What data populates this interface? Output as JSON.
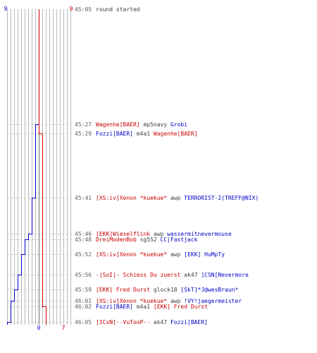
{
  "colors": {
    "ct": "#0000c8",
    "t": "#c80000",
    "neutral": "#404040",
    "time": "#606060",
    "grid": "#b8b8b8",
    "dash": "#c8c8c8"
  },
  "score_ct_start": "9",
  "score_t_start": "9",
  "score_ct_end": "0",
  "score_t_end": "7",
  "events": [
    {
      "time": "45:05",
      "ct": 9,
      "t": 9,
      "parts": [
        {
          "text": "round started",
          "team": "neutral"
        }
      ]
    },
    {
      "time": "45:27",
      "ct": 8,
      "t": 9,
      "parts": [
        {
          "text": "Wagenhe[BAER]",
          "team": "t"
        },
        {
          "text": " mp5navy ",
          "team": "neutral"
        },
        {
          "text": "Grobi",
          "team": "ct"
        }
      ]
    },
    {
      "time": "45:29",
      "ct": 8,
      "t": 8,
      "parts": [
        {
          "text": "Fozzi[BAER]",
          "team": "ct"
        },
        {
          "text": " m4a1 ",
          "team": "neutral"
        },
        {
          "text": "Wagenhe[BAER]",
          "team": "t"
        }
      ]
    },
    {
      "time": "45:41",
      "ct": 7,
      "t": 8,
      "parts": [
        {
          "text": "[XS:iv]Xenon *kuekue*",
          "team": "t"
        },
        {
          "text": " awp ",
          "team": "neutral"
        },
        {
          "text": "TERRORIST-2(TREFF@NIX)",
          "team": "ct"
        }
      ]
    },
    {
      "time": "45:46",
      "ct": 6,
      "t": 8,
      "parts": [
        {
          "text": "[EKK]Wieselflink",
          "team": "t"
        },
        {
          "text": " awp ",
          "team": "neutral"
        },
        {
          "text": "wassermitnevermouse",
          "team": "ct"
        }
      ]
    },
    {
      "time": "45:48",
      "ct": 5,
      "t": 8,
      "parts": [
        {
          "text": "DreiModenBob",
          "team": "t"
        },
        {
          "text": " sg552 ",
          "team": "neutral"
        },
        {
          "text": "CC|Fastjack",
          "team": "ct"
        }
      ]
    },
    {
      "time": "45:52",
      "ct": 4,
      "t": 8,
      "parts": [
        {
          "text": "[XS:iv]Xenon *kuekue*",
          "team": "t"
        },
        {
          "text": " awp ",
          "team": "neutral"
        },
        {
          "text": "[EKK] HuMpTy",
          "team": "ct"
        }
      ]
    },
    {
      "time": "45:56",
      "ct": 3,
      "t": 8,
      "parts": [
        {
          "text": "-|SoI|- Schiess Du zuerst",
          "team": "t"
        },
        {
          "text": " ak47 ",
          "team": "neutral"
        },
        {
          "text": "]CSN[Nevermore",
          "team": "ct"
        }
      ]
    },
    {
      "time": "45:59",
      "ct": 2,
      "t": 8,
      "parts": [
        {
          "text": "[EKK] Fred Durst",
          "team": "t"
        },
        {
          "text": " glock18 ",
          "team": "neutral"
        },
        {
          "text": "[SkT]*J@wesBraun*",
          "team": "ct"
        }
      ]
    },
    {
      "time": "46:01",
      "ct": 1,
      "t": 8,
      "parts": [
        {
          "text": "[XS:iv]Xenon *kuekue*",
          "team": "t"
        },
        {
          "text": " awp ",
          "team": "neutral"
        },
        {
          "text": "!VY!jaegermeister",
          "team": "ct"
        }
      ]
    },
    {
      "time": "46:02",
      "ct": 1,
      "t": 7,
      "parts": [
        {
          "text": "Fozzi[BAER]",
          "team": "ct"
        },
        {
          "text": " m4a1 ",
          "team": "neutral"
        },
        {
          "text": "[EKK] Fred Durst",
          "team": "t"
        }
      ]
    },
    {
      "time": "46:05",
      "ct": 0,
      "t": 7,
      "parts": [
        {
          "text": "]ICsN[--VuTooP--",
          "team": "t"
        },
        {
          "text": " ak47 ",
          "team": "neutral"
        },
        {
          "text": "Fozzi[BAER]",
          "team": "ct"
        }
      ]
    }
  ]
}
